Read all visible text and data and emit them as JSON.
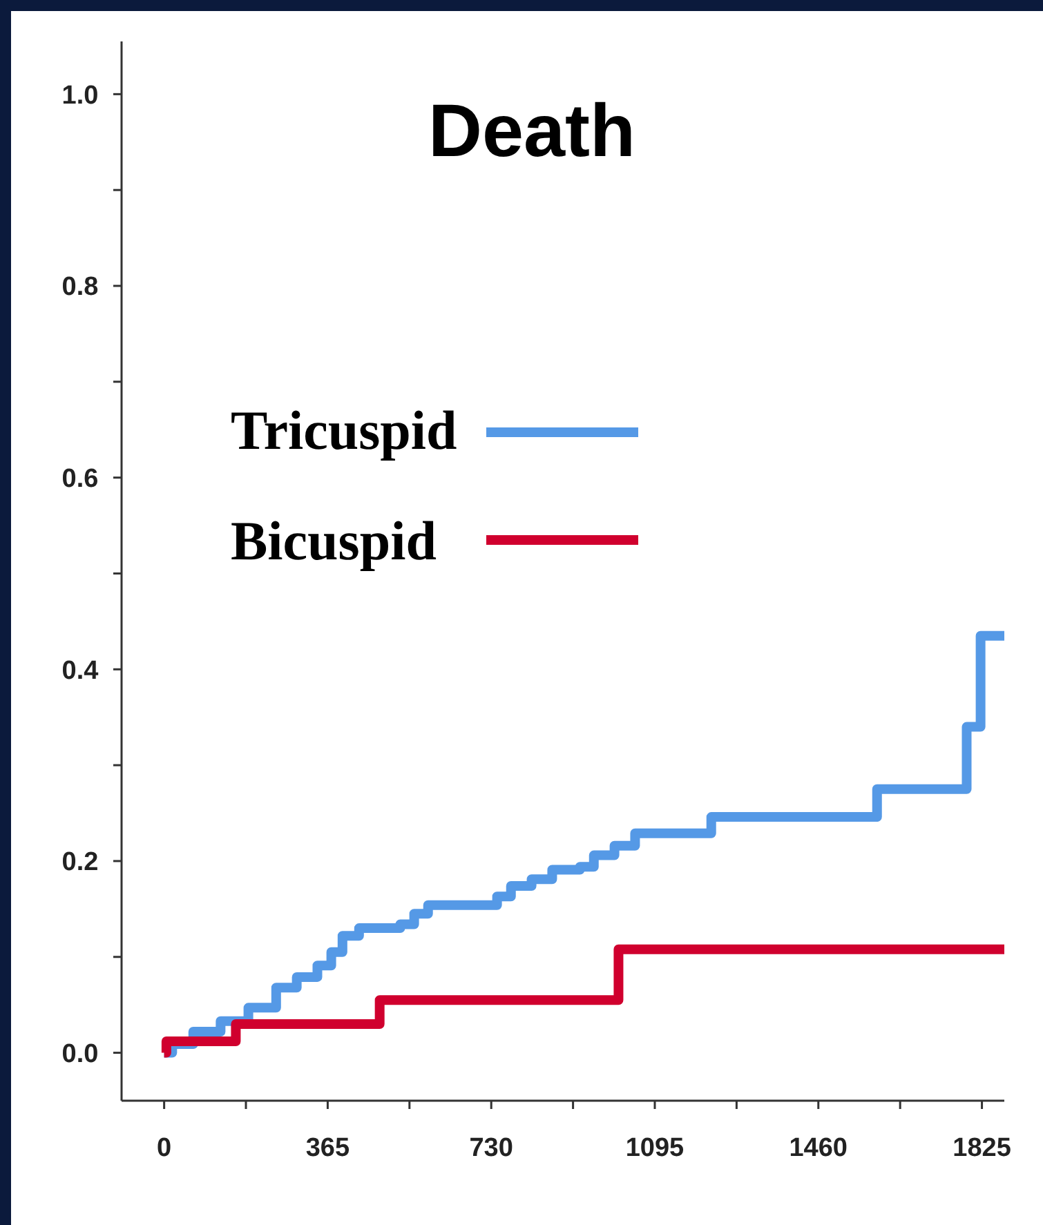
{
  "chart_data": {
    "type": "step",
    "title": "Death",
    "xlim": [
      -95,
      1875
    ],
    "ylim": [
      -0.05,
      1.055
    ],
    "xticks": [
      0,
      {
        "value": 182.5,
        "label": null
      },
      365,
      {
        "value": 547.5,
        "label": null
      },
      730,
      {
        "value": 912.5,
        "label": null
      },
      1095,
      {
        "value": 1277.5,
        "label": null
      },
      1460,
      {
        "value": 1642.5,
        "label": null
      },
      1825
    ],
    "yticks": [
      {
        "value": 0,
        "label": "0.0"
      },
      {
        "value": 0.1,
        "label": null
      },
      {
        "value": 0.2,
        "label": "0.2"
      },
      {
        "value": 0.3,
        "label": null
      },
      {
        "value": 0.4,
        "label": "0.4"
      },
      {
        "value": 0.5,
        "label": null
      },
      {
        "value": 0.6,
        "label": "0.6"
      },
      {
        "value": 0.7,
        "label": null
      },
      {
        "value": 0.8,
        "label": "0.8"
      },
      {
        "value": 0.9,
        "label": null
      },
      {
        "value": 1.0,
        "label": "1.0"
      }
    ],
    "grid": false,
    "legend": "top",
    "series": [
      {
        "name": "Tricuspid",
        "color": "#5599e6",
        "x": [
          0,
          18,
          65,
          126,
          188,
          250,
          296,
          342,
          373,
          398,
          435,
          527,
          558,
          589,
          712,
          743,
          774,
          820,
          866,
          928,
          959,
          1005,
          1051,
          1221,
          1591,
          1791,
          1822,
          1875
        ],
        "values": [
          0,
          0.009,
          0.022,
          0.033,
          0.047,
          0.068,
          0.079,
          0.091,
          0.105,
          0.122,
          0.13,
          0.134,
          0.145,
          0.154,
          0.154,
          0.163,
          0.174,
          0.181,
          0.191,
          0.194,
          0.206,
          0.216,
          0.229,
          0.246,
          0.275,
          0.34,
          0.435,
          0.435
        ]
      },
      {
        "name": "Bicuspid",
        "color": "#d0002e",
        "x": [
          0,
          5,
          160,
          481,
          1014,
          1875
        ],
        "values": [
          0,
          0.012,
          0.03,
          0.055,
          0.108,
          0.108
        ]
      }
    ]
  }
}
